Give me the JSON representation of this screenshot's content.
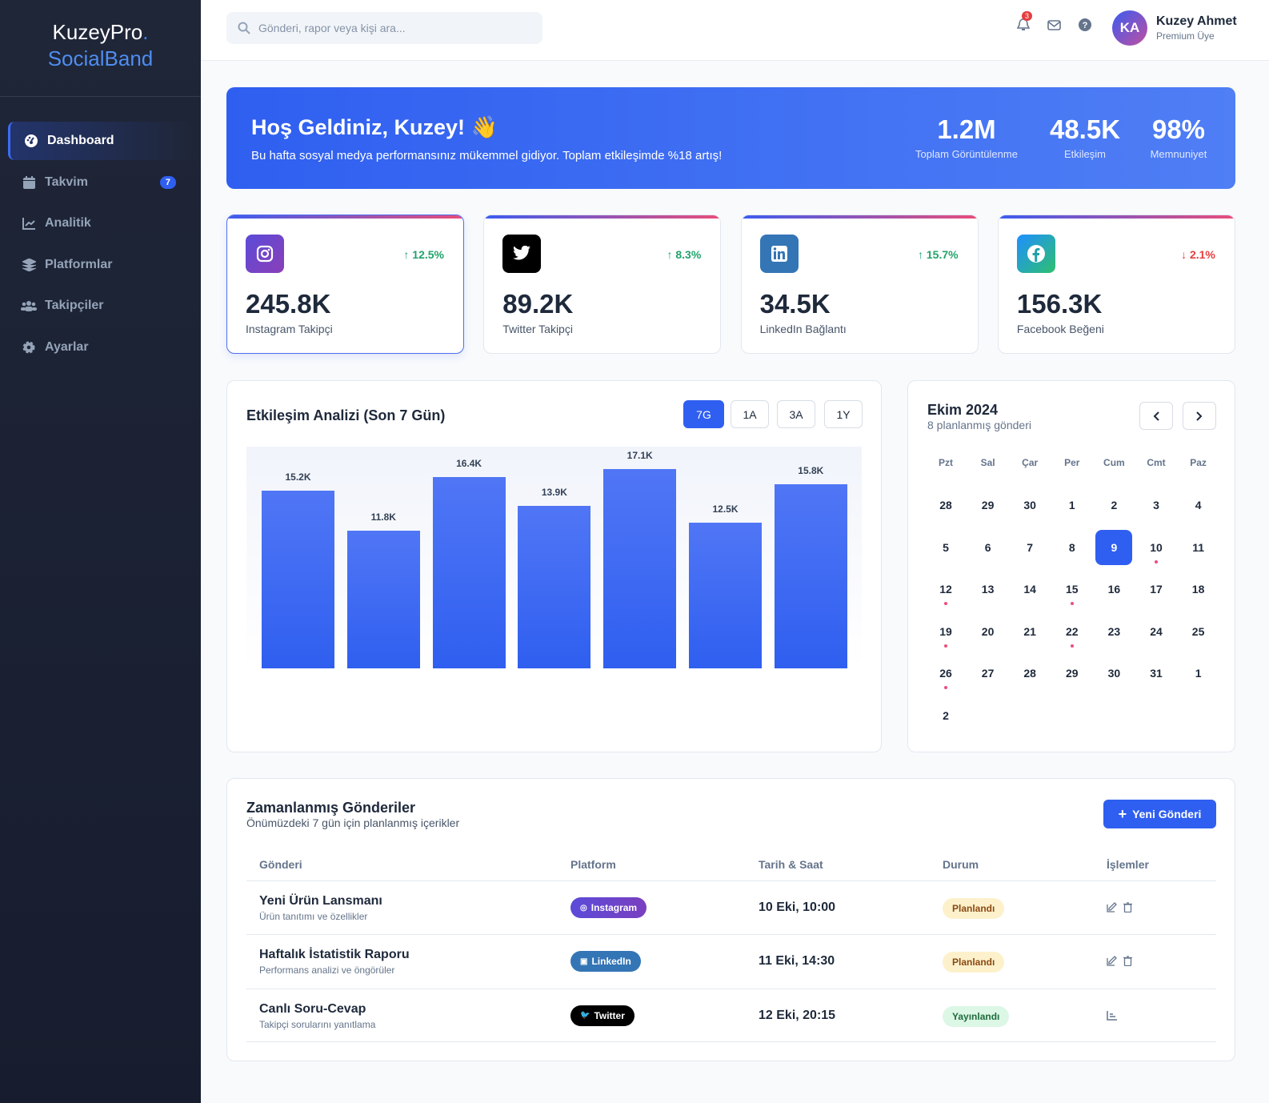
{
  "brand": {
    "line1": "KuzeyPro",
    "dot": ".",
    "line2": "SocialBand"
  },
  "sidebar": {
    "items": [
      {
        "label": "Dashboard",
        "icon": "gauge-icon",
        "active": true
      },
      {
        "label": "Takvim",
        "icon": "calendar-icon",
        "badge": "7"
      },
      {
        "label": "Analitik",
        "icon": "line-chart-icon"
      },
      {
        "label": "Platformlar",
        "icon": "layers-icon"
      },
      {
        "label": "Takipçiler",
        "icon": "users-icon"
      },
      {
        "label": "Ayarlar",
        "icon": "gear-icon"
      }
    ]
  },
  "header": {
    "search_placeholder": "Gönderi, rapor veya kişi ara...",
    "notifications": "3",
    "user": {
      "initials": "KA",
      "name": "Kuzey Ahmet",
      "role": "Premium Üye"
    }
  },
  "hero": {
    "title": "Hoş Geldiniz, Kuzey! 👋",
    "subtitle": "Bu hafta sosyal medya performansınız mükemmel gidiyor. Toplam etkileşimde %18 artış!",
    "stats": [
      {
        "value": "1.2M",
        "label": "Toplam Görüntülenme"
      },
      {
        "value": "48.5K",
        "label": "Etkileşim"
      },
      {
        "value": "98%",
        "label": "Memnuniyet"
      }
    ]
  },
  "cards": [
    {
      "value": "245.8K",
      "label": "Instagram Takipçi",
      "change": "12.5%",
      "dir": "up",
      "icon": "instagram-icon",
      "color": "#6d4bd6"
    },
    {
      "value": "89.2K",
      "label": "Twitter Takipçi",
      "change": "8.3%",
      "dir": "up",
      "icon": "twitter-icon",
      "color": "#000000"
    },
    {
      "value": "34.5K",
      "label": "LinkedIn Bağlantı",
      "change": "15.7%",
      "dir": "up",
      "icon": "linkedin-icon",
      "color": "#3475b5"
    },
    {
      "value": "156.3K",
      "label": "Facebook Beğeni",
      "change": "2.1%",
      "dir": "down",
      "icon": "facebook-icon",
      "color": "#1fa0a8"
    }
  ],
  "engagement": {
    "title": "Etkileşim Analizi (Son 7 Gün)",
    "ranges": [
      "7G",
      "1A",
      "3A",
      "1Y"
    ],
    "active_range": "7G"
  },
  "chart_data": {
    "type": "bar",
    "title": "Etkileşim Analizi (Son 7 Gün)",
    "values": [
      15.2,
      11.8,
      16.4,
      13.9,
      17.1,
      12.5,
      15.8
    ],
    "labels": [
      "15.2K",
      "11.8K",
      "16.4K",
      "13.9K",
      "17.1K",
      "12.5K",
      "15.8K"
    ],
    "ylim": [
      0,
      19
    ],
    "grid": false
  },
  "calendar": {
    "title": "Ekim 2024",
    "subtitle": "8 planlanmış gönderi",
    "weekdays": [
      "Pzt",
      "Sal",
      "Çar",
      "Per",
      "Cum",
      "Cmt",
      "Paz"
    ],
    "days": [
      "28",
      "29",
      "30",
      "1",
      "2",
      "3",
      "4",
      "5",
      "6",
      "7",
      "8",
      "9",
      "10",
      "11",
      "12",
      "13",
      "14",
      "15",
      "16",
      "17",
      "18",
      "19",
      "20",
      "21",
      "22",
      "23",
      "24",
      "25",
      "26",
      "27",
      "28",
      "29",
      "30",
      "31",
      "1",
      "2"
    ],
    "today_index": 11,
    "event_indices": [
      12,
      14,
      17,
      21,
      24,
      28
    ]
  },
  "scheduled": {
    "title": "Zamanlanmış Gönderiler",
    "subtitle": "Önümüzdeki 7 gün için planlanmış içerikler",
    "new_button": "Yeni Gönderi",
    "columns": [
      "Gönderi",
      "Platform",
      "Tarih & Saat",
      "Durum",
      "İşlemler"
    ],
    "rows": [
      {
        "title": "Yeni Ürün Lansmanı",
        "desc": "Ürün tanıtımı ve özellikler",
        "platform": "Instagram",
        "date": "10 Eki, 10:00",
        "status": "Planlandı",
        "actions": [
          "edit",
          "delete"
        ]
      },
      {
        "title": "Haftalık İstatistik Raporu",
        "desc": "Performans analizi ve öngörüler",
        "platform": "LinkedIn",
        "date": "11 Eki, 14:30",
        "status": "Planlandı",
        "actions": [
          "edit",
          "delete"
        ]
      },
      {
        "title": "Canlı Soru-Cevap",
        "desc": "Takipçi sorularını yanıtlama",
        "platform": "Twitter",
        "date": "12 Eki, 20:15",
        "status": "Yayınlandı",
        "actions": [
          "stats"
        ]
      }
    ]
  }
}
